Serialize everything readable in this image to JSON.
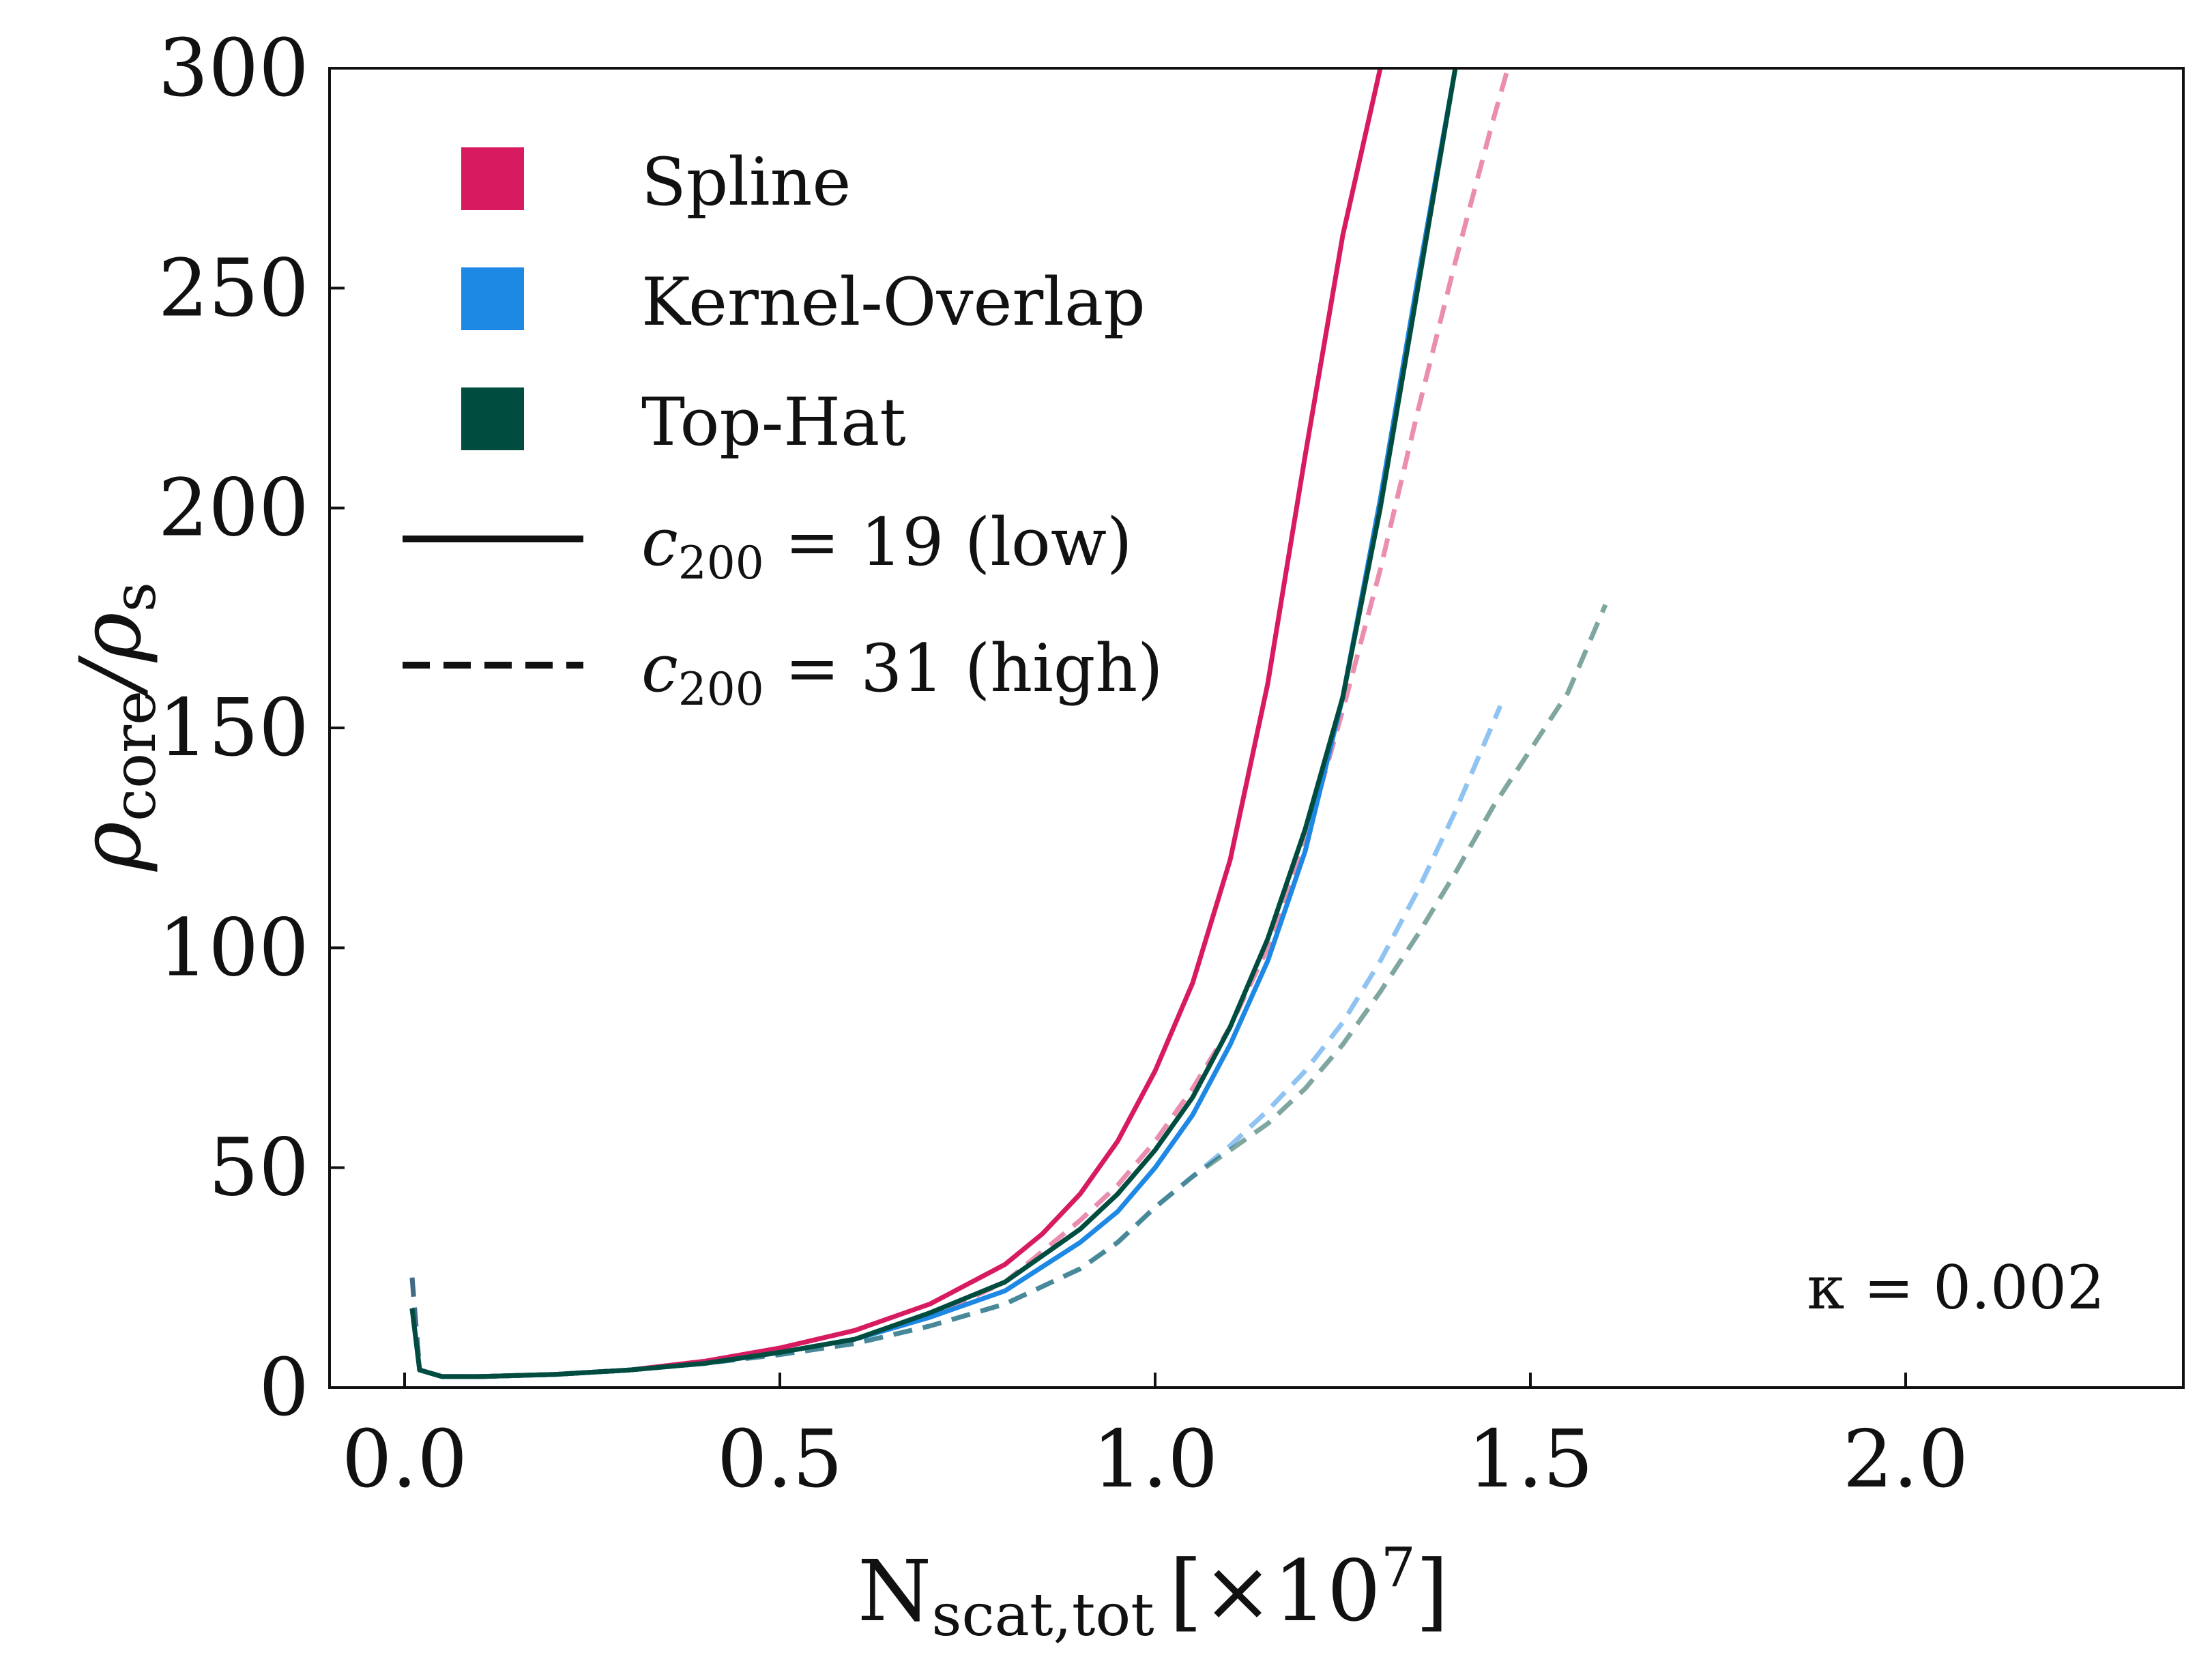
{
  "chart_data": {
    "type": "line",
    "xlabel_main": "N",
    "xlabel_sub": "scat,tot",
    "xlabel_unit": "[×10",
    "xlabel_exp": "7",
    "xlabel_close": "]",
    "ylabel_num": "ρ",
    "ylabel_num_sub": "core",
    "ylabel_den": "/ρ",
    "ylabel_den_sub": "s",
    "xlim": [
      -0.1,
      2.37
    ],
    "ylim": [
      0,
      300
    ],
    "xticks": [
      0.0,
      0.5,
      1.0,
      1.5,
      2.0
    ],
    "xtick_labels": [
      "0.0",
      "0.5",
      "1.0",
      "1.5",
      "2.0"
    ],
    "yticks": [
      0,
      50,
      100,
      150,
      200,
      250,
      300
    ],
    "ytick_labels": [
      "0",
      "50",
      "100",
      "150",
      "200",
      "250",
      "300"
    ],
    "annotation": "κ = 0.002",
    "legend": {
      "placement": "top-left",
      "methods": [
        {
          "label": "Spline",
          "color": "#d81b60"
        },
        {
          "label": "Kernel-Overlap",
          "color": "#1e88e5"
        },
        {
          "label": "Top-Hat",
          "color": "#004d40"
        }
      ],
      "styles": [
        {
          "prefix": "c",
          "sub": "200",
          "suffix": " = 19 (low)",
          "dash": "solid"
        },
        {
          "prefix": "c",
          "sub": "200",
          "suffix": " = 31 (high)",
          "dash": "dashed"
        }
      ]
    },
    "series": [
      {
        "method": "Spline",
        "color": "#d81b60",
        "style": "solid",
        "opacity": 1.0,
        "x": [
          0.01,
          0.02,
          0.05,
          0.1,
          0.2,
          0.3,
          0.4,
          0.5,
          0.6,
          0.7,
          0.8,
          0.85,
          0.9,
          0.95,
          1.0,
          1.05,
          1.1,
          1.15,
          1.2,
          1.25,
          1.3,
          1.32
        ],
        "y": [
          18,
          4,
          2.5,
          2.5,
          3,
          4,
          6,
          9,
          13,
          19,
          28,
          35,
          44,
          56,
          72,
          92,
          120,
          160,
          212,
          262,
          300,
          310
        ]
      },
      {
        "method": "Kernel-Overlap",
        "color": "#1e88e5",
        "style": "solid",
        "opacity": 1.0,
        "x": [
          0.01,
          0.02,
          0.05,
          0.1,
          0.2,
          0.3,
          0.4,
          0.5,
          0.6,
          0.7,
          0.8,
          0.9,
          0.95,
          1.0,
          1.05,
          1.1,
          1.15,
          1.2,
          1.25,
          1.3,
          1.35,
          1.4,
          1.42
        ],
        "y": [
          18,
          4,
          2.5,
          2.5,
          3,
          4,
          5.5,
          8,
          11,
          16,
          22,
          33,
          40,
          50,
          62,
          78,
          97,
          122,
          157,
          202,
          252,
          300,
          315
        ]
      },
      {
        "method": "Top-Hat",
        "color": "#004d40",
        "style": "solid",
        "opacity": 1.0,
        "x": [
          0.01,
          0.02,
          0.05,
          0.1,
          0.2,
          0.3,
          0.4,
          0.5,
          0.6,
          0.7,
          0.8,
          0.9,
          0.95,
          1.0,
          1.05,
          1.1,
          1.15,
          1.2,
          1.25,
          1.3,
          1.35,
          1.4,
          1.42
        ],
        "y": [
          18,
          4,
          2.5,
          2.5,
          3,
          4,
          5.5,
          8,
          11,
          17,
          24,
          36,
          44,
          54,
          66,
          82,
          102,
          127,
          157,
          200,
          250,
          300,
          315
        ]
      },
      {
        "method": "Spline",
        "color": "#d81b60",
        "style": "dashed",
        "opacity": 0.5,
        "x": [
          0.01,
          0.02,
          0.05,
          0.1,
          0.2,
          0.3,
          0.4,
          0.5,
          0.6,
          0.7,
          0.8,
          0.9,
          0.95,
          1.0,
          1.05,
          1.1,
          1.15,
          1.2,
          1.25,
          1.3,
          1.35,
          1.4,
          1.45,
          1.47
        ],
        "y": [
          25,
          4,
          2.5,
          2.5,
          3,
          4,
          5.5,
          8,
          11,
          16,
          24,
          38,
          46,
          56,
          68,
          82,
          100,
          124,
          154,
          186,
          222,
          256,
          288,
          300
        ]
      },
      {
        "method": "Kernel-Overlap",
        "color": "#1e88e5",
        "style": "dashed",
        "opacity": 0.5,
        "x": [
          0.01,
          0.02,
          0.05,
          0.1,
          0.2,
          0.3,
          0.4,
          0.5,
          0.6,
          0.7,
          0.8,
          0.9,
          0.95,
          1.0,
          1.05,
          1.1,
          1.15,
          1.2,
          1.25,
          1.3,
          1.35,
          1.4,
          1.46
        ],
        "y": [
          25,
          4,
          2.5,
          2.5,
          3,
          4,
          5.5,
          7.5,
          10,
          14,
          19,
          27,
          33,
          41,
          48,
          55,
          63,
          72,
          83,
          97,
          113,
          131,
          155
        ]
      },
      {
        "method": "Top-Hat",
        "color": "#004d40",
        "style": "dashed",
        "opacity": 0.5,
        "x": [
          0.01,
          0.02,
          0.05,
          0.1,
          0.2,
          0.3,
          0.4,
          0.5,
          0.6,
          0.7,
          0.8,
          0.9,
          0.95,
          1.0,
          1.05,
          1.1,
          1.15,
          1.2,
          1.25,
          1.3,
          1.35,
          1.4,
          1.45,
          1.5,
          1.55,
          1.6
        ],
        "y": [
          25,
          4,
          2.5,
          2.5,
          3,
          4,
          5.5,
          7.5,
          10,
          14,
          19,
          27,
          33,
          41,
          48,
          54,
          60,
          68,
          78,
          90,
          103,
          117,
          132,
          145,
          158,
          178
        ]
      }
    ]
  }
}
